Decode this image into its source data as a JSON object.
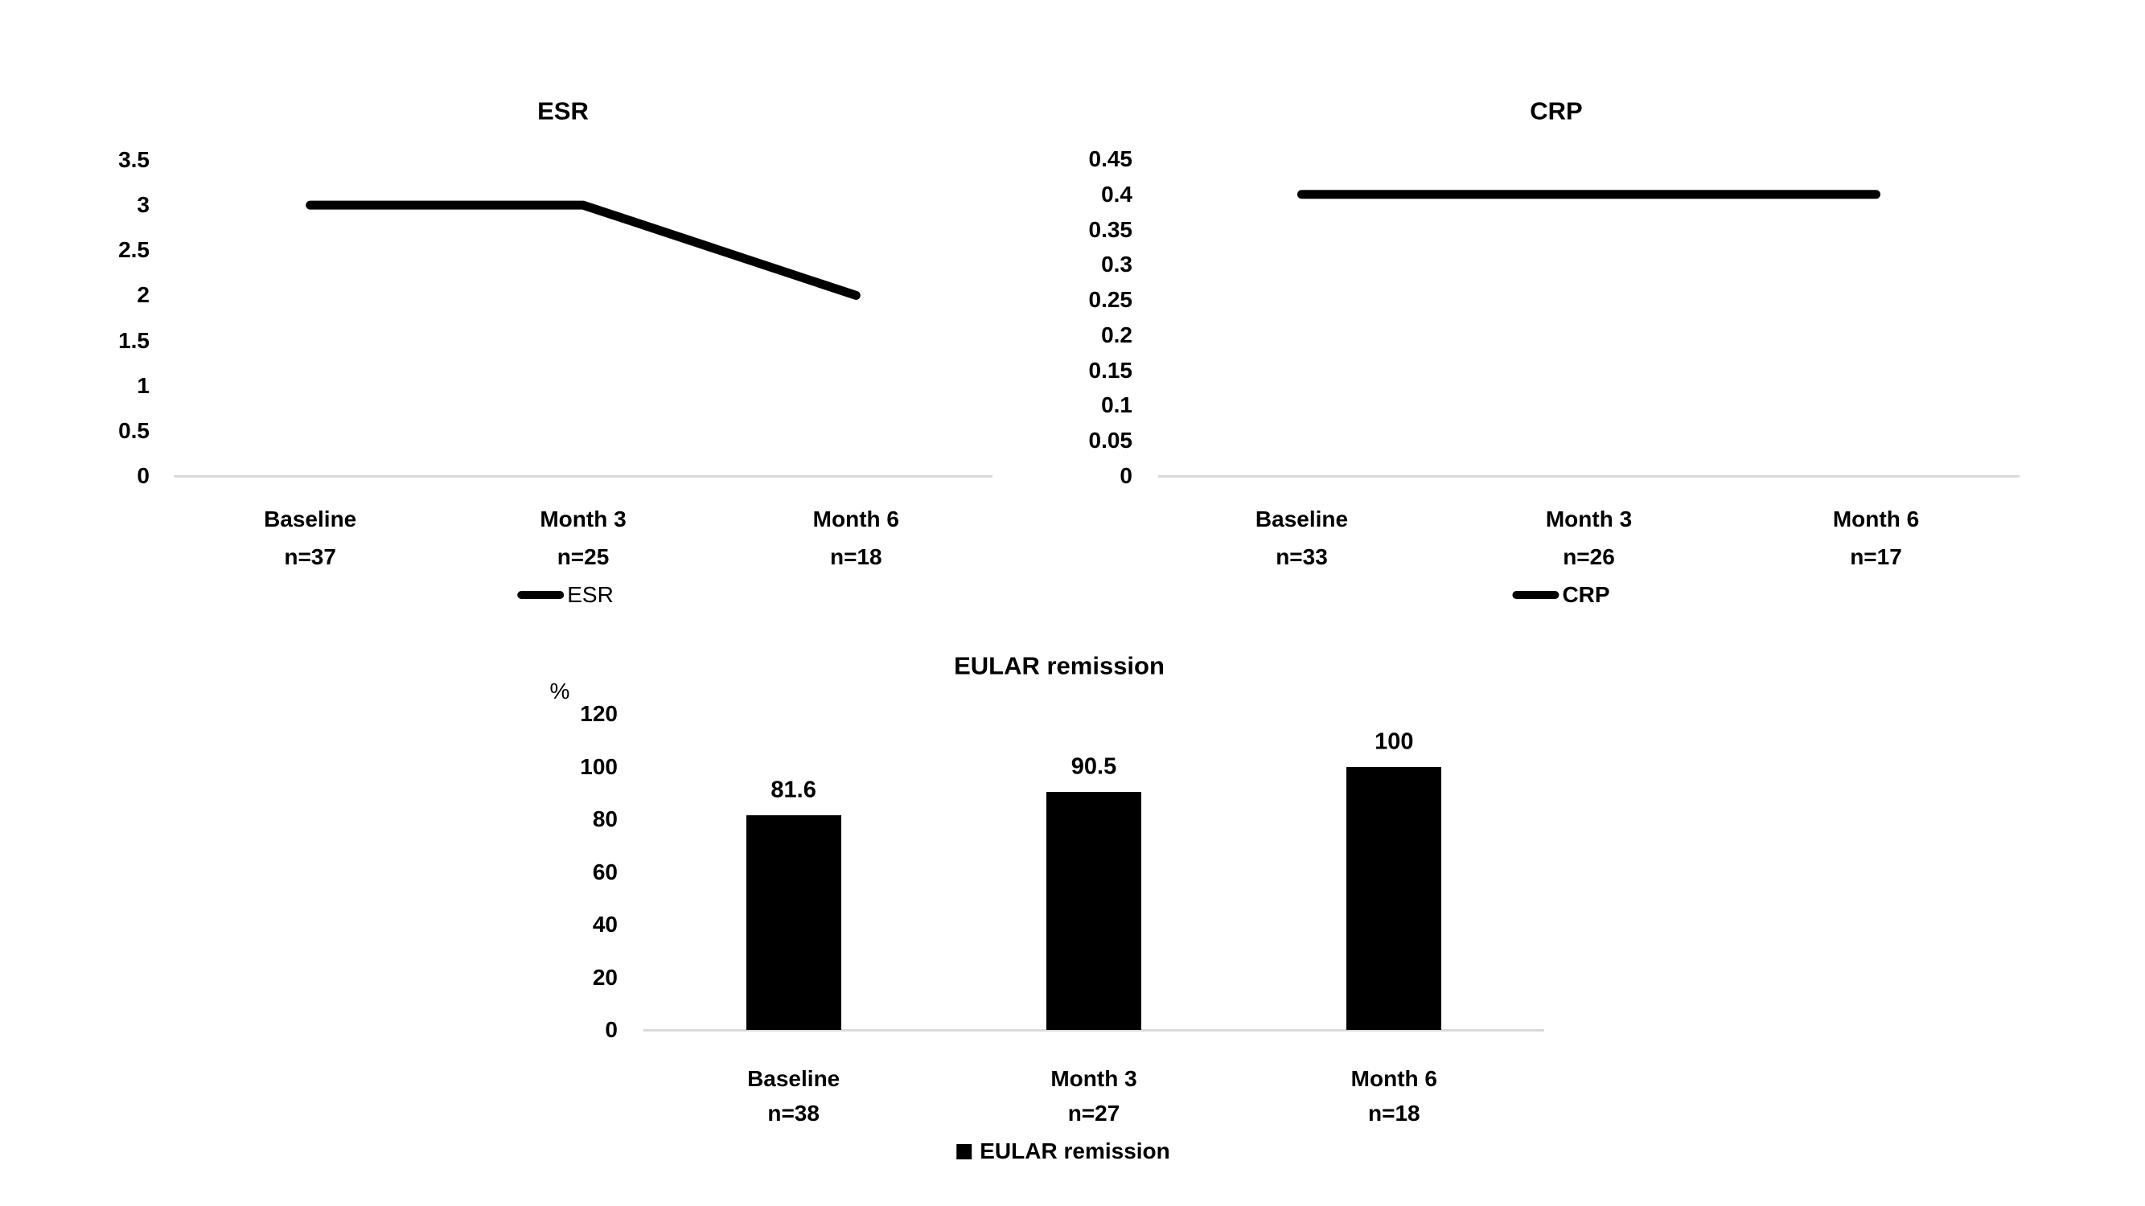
{
  "figure": {
    "background": "#ffffff",
    "axis_color": "#d9d9d9",
    "ink_color": "#000000"
  },
  "chart_data": [
    {
      "id": "esr",
      "type": "line",
      "title": "ESR",
      "legend_label": "ESR",
      "legend_position": "bottom",
      "categories": [
        "Baseline",
        "Month 3",
        "Month 6"
      ],
      "n_labels": [
        "n=37",
        "n=25",
        "n=18"
      ],
      "values": [
        3,
        3,
        2
      ],
      "ytick_labels": [
        "3.5",
        "3",
        "2.5",
        "2",
        "1.5",
        "1",
        "0.5",
        "0"
      ],
      "ylim": [
        0,
        3.5
      ],
      "grid": false
    },
    {
      "id": "crp",
      "type": "line",
      "title": "CRP",
      "legend_label": "CRP",
      "legend_position": "bottom",
      "categories": [
        "Baseline",
        "Month 3",
        "Month 6"
      ],
      "n_labels": [
        "n=33",
        "n=26",
        "n=17"
      ],
      "values": [
        0.4,
        0.4,
        0.4
      ],
      "ytick_labels": [
        "0.45",
        "0.4",
        "0.35",
        "0.3",
        "0.25",
        "0.2",
        "0.15",
        "0.1",
        "0.05",
        "0"
      ],
      "ylim": [
        0,
        0.45
      ],
      "grid": false
    },
    {
      "id": "eular",
      "type": "bar",
      "title": "EULAR remission",
      "legend_label": "EULAR remission",
      "legend_position": "bottom",
      "ylabel": "%",
      "categories": [
        "Baseline",
        "Month 3",
        "Month 6"
      ],
      "n_labels": [
        "n=38",
        "n=27",
        "n=18"
      ],
      "values": [
        81.6,
        90.5,
        100
      ],
      "data_labels": [
        "81.6",
        "90.5",
        "100"
      ],
      "ytick_labels": [
        "120",
        "100",
        "80",
        "60",
        "40",
        "20",
        "0"
      ],
      "ylim": [
        0,
        120
      ],
      "grid": false
    }
  ]
}
